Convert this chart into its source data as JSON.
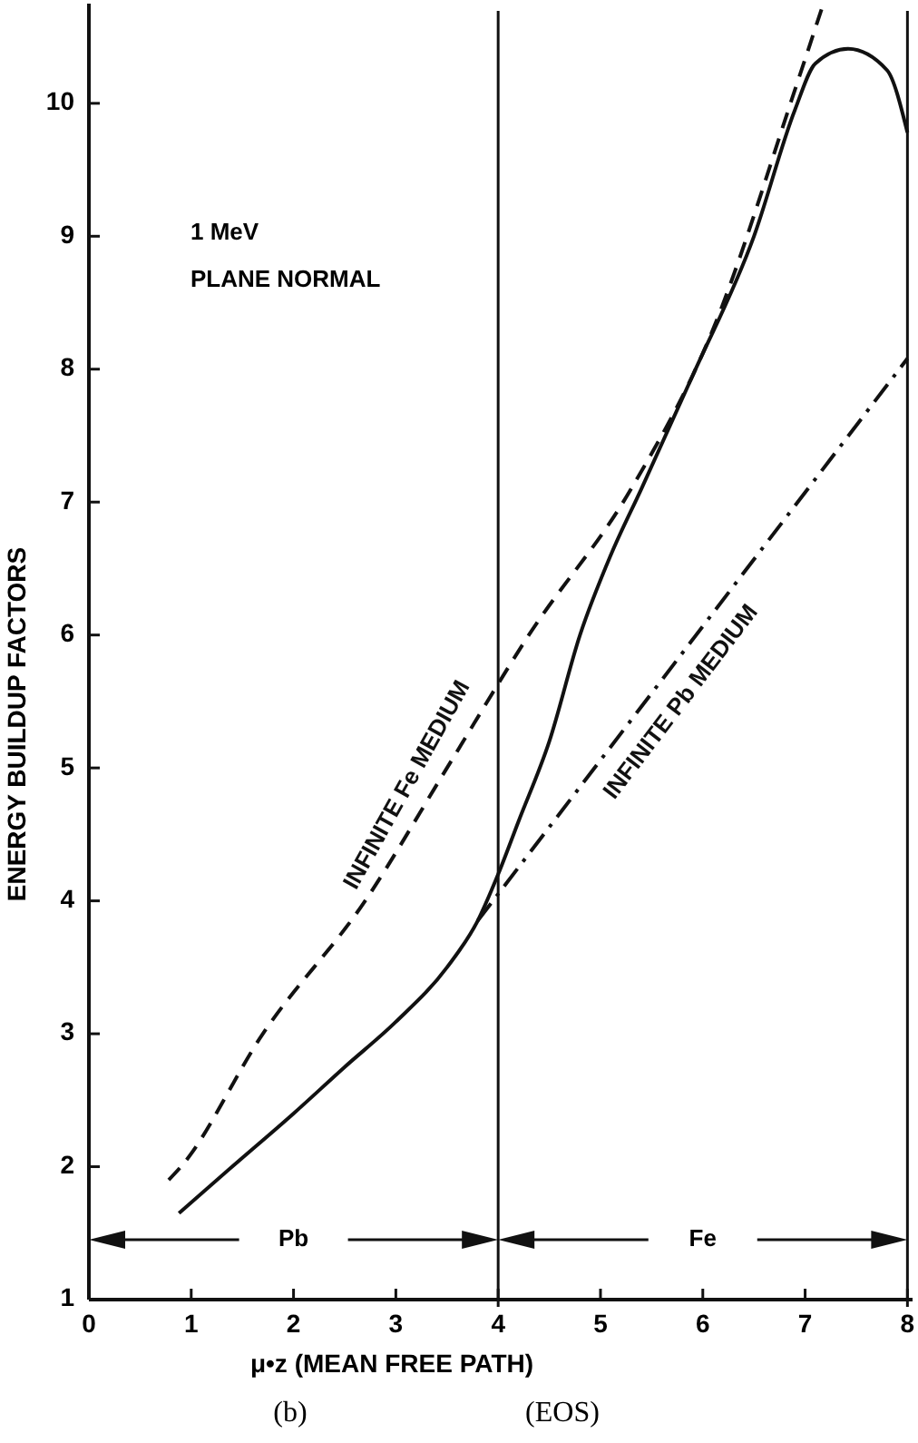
{
  "chart_data": {
    "type": "line",
    "xlabel": "μ•z (MEAN FREE PATH)",
    "ylabel": "ENERGY BUILDUP FACTORS",
    "xlim": [
      0,
      8.05
    ],
    "ylim": [
      1,
      10.75
    ],
    "xticks": [
      0,
      1,
      2,
      3,
      4,
      5,
      6,
      7,
      8
    ],
    "yticks": [
      1,
      2,
      3,
      4,
      5,
      6,
      7,
      8,
      9,
      10
    ],
    "grid": false,
    "marker": "none",
    "series": [
      {
        "color": "#111111",
        "line_style": "solid",
        "x": [
          0.88,
          1.4,
          2,
          2.5,
          3,
          3.5,
          3.8,
          4,
          4.2,
          4.5,
          4.8,
          5.1,
          5.4,
          5.9,
          6.5,
          6.9,
          7.1,
          7.42,
          7.8,
          8
        ],
        "values": [
          1.65,
          2.0,
          2.4,
          2.75,
          3.09,
          3.5,
          3.85,
          4.2,
          4.6,
          5.2,
          6.0,
          6.6,
          7.1,
          7.95,
          9.0,
          9.95,
          10.3,
          10.41,
          10.25,
          9.78
        ]
      },
      {
        "name": "INFINITE Fe MEDIUM",
        "color": "#111111",
        "line_style": "dashed",
        "x": [
          0.78,
          0.9,
          1.7,
          2.7,
          3.5,
          4.3,
          5.3,
          6.1,
          6.9,
          7.17
        ],
        "values": [
          1.9,
          2.0,
          3.0,
          4.0,
          5.0,
          6.0,
          7.1,
          8.3,
          10.1,
          10.73
        ]
      },
      {
        "name": "INFINITE Pb MEDIUM",
        "color": "#111111",
        "line_style": "dashdot",
        "x": [
          3.8,
          8
        ],
        "values": [
          3.85,
          8.08
        ]
      }
    ],
    "ref_lines": [
      {
        "axis": "x",
        "value": 4,
        "color": "#111111"
      },
      {
        "axis": "x",
        "value": 8,
        "color": "#111111"
      }
    ],
    "annotations": [
      "1 MeV",
      "PLANE NORMAL",
      "(b)",
      "(EOS)",
      "Pb",
      "Fe"
    ]
  }
}
